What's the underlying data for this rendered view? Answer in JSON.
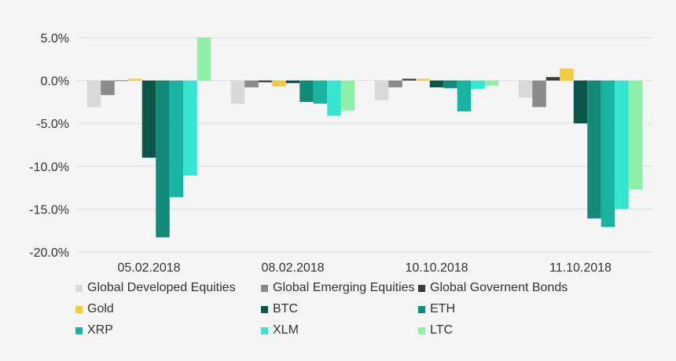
{
  "chart_data": {
    "type": "bar",
    "categories": [
      "05.02.2018",
      "08.02.2018",
      "10.10.2018",
      "11.10.2018"
    ],
    "ylim": [
      -20,
      5
    ],
    "yticks": [
      5,
      0,
      -5,
      -10,
      -15,
      -20
    ],
    "ytick_labels": [
      "5.0%",
      "0.0%",
      "-5.0%",
      "-10.0%",
      "-15.0%",
      "-20.0%"
    ],
    "grid": true,
    "legend_position": "bottom",
    "series": [
      {
        "name": "Global Developed Equities",
        "color": "#d9d9d9",
        "values": [
          -3.1,
          -2.7,
          -2.3,
          -2.0
        ]
      },
      {
        "name": "Global Emerging Equities",
        "color": "#8a8a8a",
        "values": [
          -1.7,
          -0.8,
          -0.8,
          -3.1
        ]
      },
      {
        "name": "Global Governent Bonds",
        "color": "#3a3a3a",
        "values": [
          0.0,
          -0.2,
          0.2,
          0.4
        ]
      },
      {
        "name": "Gold",
        "color": "#f5c842",
        "values": [
          0.2,
          -0.7,
          0.2,
          1.4
        ]
      },
      {
        "name": "BTC",
        "color": "#0b5549",
        "values": [
          -9.0,
          -0.3,
          -0.8,
          -5.0
        ]
      },
      {
        "name": "ETH",
        "color": "#128a79",
        "values": [
          -18.3,
          -2.5,
          -0.9,
          -16.1
        ]
      },
      {
        "name": "XRP",
        "color": "#19b3a1",
        "values": [
          -13.6,
          -2.7,
          -3.6,
          -17.1
        ]
      },
      {
        "name": "XLM",
        "color": "#34e6cf",
        "values": [
          -11.1,
          -4.1,
          -1.0,
          -15.0
        ]
      },
      {
        "name": "LTC",
        "color": "#8ef0a6",
        "values": [
          5.0,
          -3.5,
          -0.6,
          -12.7
        ]
      }
    ]
  }
}
